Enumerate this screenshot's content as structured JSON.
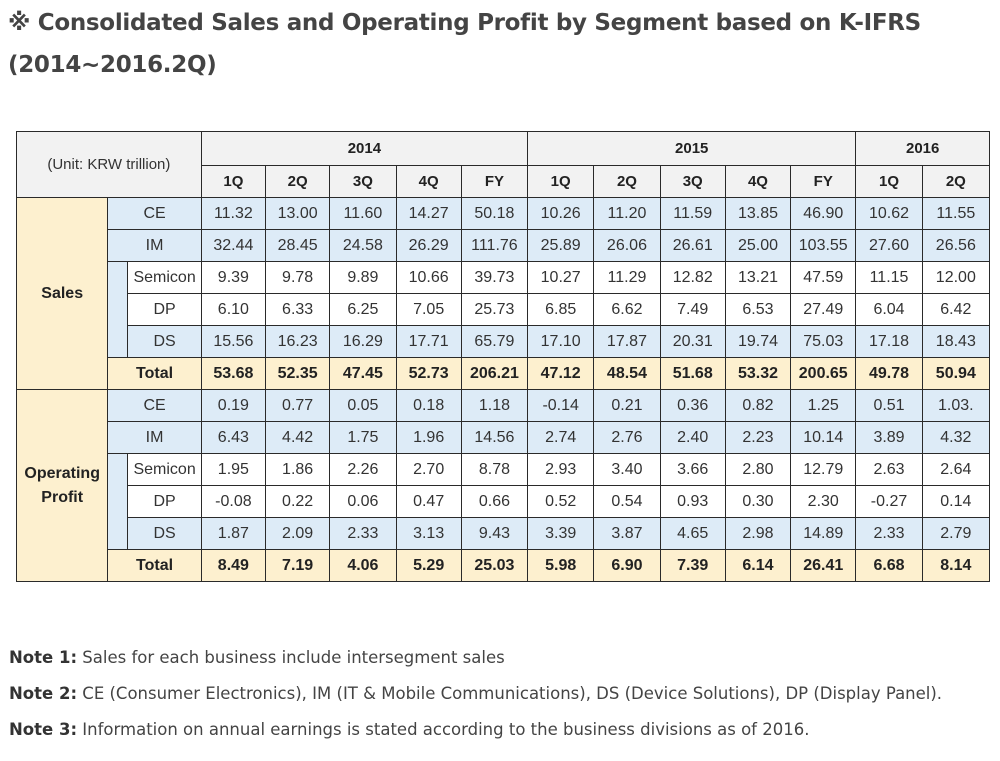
{
  "title": {
    "line1": "※ Consolidated Sales and Operating Profit by Segment based on K-IFRS",
    "line2": "(2014~2016.2Q)"
  },
  "table": {
    "unit_label": "(Unit: KRW trillion)",
    "years": [
      {
        "label": "2014",
        "span": 5
      },
      {
        "label": "2015",
        "span": 5
      },
      {
        "label": "2016",
        "span": 2
      }
    ],
    "periods": [
      "1Q",
      "2Q",
      "3Q",
      "4Q",
      "FY",
      "1Q",
      "2Q",
      "3Q",
      "4Q",
      "FY",
      "1Q",
      "2Q"
    ],
    "sections": [
      {
        "label": "Sales",
        "rows": [
          {
            "segment": "CE",
            "values": [
              "11.32",
              "13.00",
              "11.60",
              "14.27",
              "50.18",
              "10.26",
              "11.20",
              "11.59",
              "13.85",
              "46.90",
              "10.62",
              "11.55"
            ]
          },
          {
            "segment": "IM",
            "values": [
              "32.44",
              "28.45",
              "24.58",
              "26.29",
              "111.76",
              "25.89",
              "26.06",
              "26.61",
              "25.00",
              "103.55",
              "27.60",
              "26.56"
            ]
          },
          {
            "segment": "Semicon",
            "values": [
              "9.39",
              "9.78",
              "9.89",
              "10.66",
              "39.73",
              "10.27",
              "11.29",
              "12.82",
              "13.21",
              "47.59",
              "11.15",
              "12.00"
            ]
          },
          {
            "segment": "DP",
            "values": [
              "6.10",
              "6.33",
              "6.25",
              "7.05",
              "25.73",
              "6.85",
              "6.62",
              "7.49",
              "6.53",
              "27.49",
              "6.04",
              "6.42"
            ]
          },
          {
            "segment": "DS",
            "values": [
              "15.56",
              "16.23",
              "16.29",
              "17.71",
              "65.79",
              "17.10",
              "17.87",
              "20.31",
              "19.74",
              "75.03",
              "17.18",
              "18.43"
            ]
          }
        ],
        "total": {
          "label": "Total",
          "values": [
            "53.68",
            "52.35",
            "47.45",
            "52.73",
            "206.21",
            "47.12",
            "48.54",
            "51.68",
            "53.32",
            "200.65",
            "49.78",
            "50.94"
          ]
        }
      },
      {
        "label": "Operating Profit",
        "label_line1": "Operating",
        "label_line2": "Profit",
        "rows": [
          {
            "segment": "CE",
            "values": [
              "0.19",
              "0.77",
              "0.05",
              "0.18",
              "1.18",
              "-0.14",
              "0.21",
              "0.36",
              "0.82",
              "1.25",
              "0.51",
              "1.03."
            ]
          },
          {
            "segment": "IM",
            "values": [
              "6.43",
              "4.42",
              "1.75",
              "1.96",
              "14.56",
              "2.74",
              "2.76",
              "2.40",
              "2.23",
              "10.14",
              "3.89",
              "4.32"
            ]
          },
          {
            "segment": "Semicon",
            "values": [
              "1.95",
              "1.86",
              "2.26",
              "2.70",
              "8.78",
              "2.93",
              "3.40",
              "3.66",
              "2.80",
              "12.79",
              "2.63",
              "2.64"
            ]
          },
          {
            "segment": "DP",
            "values": [
              "-0.08",
              "0.22",
              "0.06",
              "0.47",
              "0.66",
              "0.52",
              "0.54",
              "0.93",
              "0.30",
              "2.30",
              "-0.27",
              "0.14"
            ]
          },
          {
            "segment": "DS",
            "values": [
              "1.87",
              "2.09",
              "2.33",
              "3.13",
              "9.43",
              "3.39",
              "3.87",
              "4.65",
              "2.98",
              "14.89",
              "2.33",
              "2.79"
            ]
          }
        ],
        "total": {
          "label": "Total",
          "values": [
            "8.49",
            "7.19",
            "4.06",
            "5.29",
            "25.03",
            "5.98",
            "6.90",
            "7.39",
            "6.14",
            "26.41",
            "6.68",
            "8.14"
          ]
        }
      }
    ]
  },
  "notes": [
    {
      "label": "Note 1:",
      "text": " Sales for each business include intersegment sales"
    },
    {
      "label": "Note 2:",
      "text": " CE (Consumer Electronics), IM (IT & Mobile Communications), DS (Device Solutions), DP (Display Panel)."
    },
    {
      "label": "Note 3:",
      "text": " Information on annual earnings is stated according to the business divisions as of 2016."
    }
  ],
  "colors": {
    "header_bg": "#f2f2f2",
    "group_bg": "#fdf0cf",
    "segment_bg": "#ddebf7",
    "border": "#2a2a2a"
  }
}
